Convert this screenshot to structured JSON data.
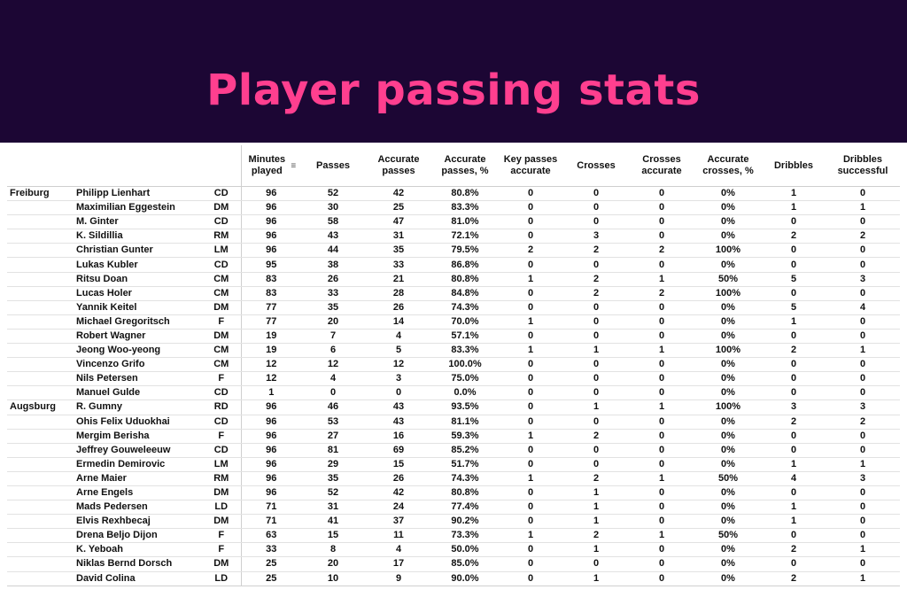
{
  "title": "Player passing stats",
  "colors": {
    "banner": "#1c0634",
    "title": "#ff3f8f"
  },
  "headers": {
    "minutes": "Minutes played",
    "passes": "Passes",
    "accurate_passes": "Accurate passes",
    "accurate_passes_pct": "Accurate passes, %",
    "key_passes": "Key passes accurate",
    "crosses": "Crosses",
    "crosses_accurate": "Crosses accurate",
    "accurate_crosses_pct": "Accurate crosses, %",
    "dribbles": "Dribbles",
    "dribbles_successful": "Dribbles successful",
    "sort_icon": "sort-icon"
  },
  "rows": [
    {
      "team": "Freiburg",
      "name": "Philipp Lienhart",
      "pos": "CD",
      "min": "96",
      "passes": "52",
      "acc": "42",
      "accp": "80.8%",
      "key": "0",
      "cr": "0",
      "cra": "0",
      "crp": "0%",
      "dr": "1",
      "drs": "0"
    },
    {
      "team": "",
      "name": "Maximilian Eggestein",
      "pos": "DM",
      "min": "96",
      "passes": "30",
      "acc": "25",
      "accp": "83.3%",
      "key": "0",
      "cr": "0",
      "cra": "0",
      "crp": "0%",
      "dr": "1",
      "drs": "1"
    },
    {
      "team": "",
      "name": "M. Ginter",
      "pos": "CD",
      "min": "96",
      "passes": "58",
      "acc": "47",
      "accp": "81.0%",
      "key": "0",
      "cr": "0",
      "cra": "0",
      "crp": "0%",
      "dr": "0",
      "drs": "0"
    },
    {
      "team": "",
      "name": "K. Sildillia",
      "pos": "RM",
      "min": "96",
      "passes": "43",
      "acc": "31",
      "accp": "72.1%",
      "key": "0",
      "cr": "3",
      "cra": "0",
      "crp": "0%",
      "dr": "2",
      "drs": "2"
    },
    {
      "team": "",
      "name": "Christian Gunter",
      "pos": "LM",
      "min": "96",
      "passes": "44",
      "acc": "35",
      "accp": "79.5%",
      "key": "2",
      "cr": "2",
      "cra": "2",
      "crp": "100%",
      "dr": "0",
      "drs": "0"
    },
    {
      "team": "",
      "name": "Lukas Kubler",
      "pos": "CD",
      "min": "95",
      "passes": "38",
      "acc": "33",
      "accp": "86.8%",
      "key": "0",
      "cr": "0",
      "cra": "0",
      "crp": "0%",
      "dr": "0",
      "drs": "0"
    },
    {
      "team": "",
      "name": "Ritsu Doan",
      "pos": "CM",
      "min": "83",
      "passes": "26",
      "acc": "21",
      "accp": "80.8%",
      "key": "1",
      "cr": "2",
      "cra": "1",
      "crp": "50%",
      "dr": "5",
      "drs": "3"
    },
    {
      "team": "",
      "name": "Lucas Holer",
      "pos": "CM",
      "min": "83",
      "passes": "33",
      "acc": "28",
      "accp": "84.8%",
      "key": "0",
      "cr": "2",
      "cra": "2",
      "crp": "100%",
      "dr": "0",
      "drs": "0"
    },
    {
      "team": "",
      "name": "Yannik Keitel",
      "pos": "DM",
      "min": "77",
      "passes": "35",
      "acc": "26",
      "accp": "74.3%",
      "key": "0",
      "cr": "0",
      "cra": "0",
      "crp": "0%",
      "dr": "5",
      "drs": "4"
    },
    {
      "team": "",
      "name": "Michael Gregoritsch",
      "pos": "F",
      "min": "77",
      "passes": "20",
      "acc": "14",
      "accp": "70.0%",
      "key": "1",
      "cr": "0",
      "cra": "0",
      "crp": "0%",
      "dr": "1",
      "drs": "0"
    },
    {
      "team": "",
      "name": "Robert Wagner",
      "pos": "DM",
      "min": "19",
      "passes": "7",
      "acc": "4",
      "accp": "57.1%",
      "key": "0",
      "cr": "0",
      "cra": "0",
      "crp": "0%",
      "dr": "0",
      "drs": "0"
    },
    {
      "team": "",
      "name": "Jeong Woo-yeong",
      "pos": "CM",
      "min": "19",
      "passes": "6",
      "acc": "5",
      "accp": "83.3%",
      "key": "1",
      "cr": "1",
      "cra": "1",
      "crp": "100%",
      "dr": "2",
      "drs": "1"
    },
    {
      "team": "",
      "name": "Vincenzo Grifo",
      "pos": "CM",
      "min": "12",
      "passes": "12",
      "acc": "12",
      "accp": "100.0%",
      "key": "0",
      "cr": "0",
      "cra": "0",
      "crp": "0%",
      "dr": "0",
      "drs": "0"
    },
    {
      "team": "",
      "name": "Nils Petersen",
      "pos": "F",
      "min": "12",
      "passes": "4",
      "acc": "3",
      "accp": "75.0%",
      "key": "0",
      "cr": "0",
      "cra": "0",
      "crp": "0%",
      "dr": "0",
      "drs": "0"
    },
    {
      "team": "",
      "name": "Manuel Gulde",
      "pos": "CD",
      "min": "1",
      "passes": "0",
      "acc": "0",
      "accp": "0.0%",
      "key": "0",
      "cr": "0",
      "cra": "0",
      "crp": "0%",
      "dr": "0",
      "drs": "0"
    },
    {
      "team": "Augsburg",
      "name": "R. Gumny",
      "pos": "RD",
      "min": "96",
      "passes": "46",
      "acc": "43",
      "accp": "93.5%",
      "key": "0",
      "cr": "1",
      "cra": "1",
      "crp": "100%",
      "dr": "3",
      "drs": "3"
    },
    {
      "team": "",
      "name": "Ohis Felix Uduokhai",
      "pos": "CD",
      "min": "96",
      "passes": "53",
      "acc": "43",
      "accp": "81.1%",
      "key": "0",
      "cr": "0",
      "cra": "0",
      "crp": "0%",
      "dr": "2",
      "drs": "2"
    },
    {
      "team": "",
      "name": "Mergim Berisha",
      "pos": "F",
      "min": "96",
      "passes": "27",
      "acc": "16",
      "accp": "59.3%",
      "key": "1",
      "cr": "2",
      "cra": "0",
      "crp": "0%",
      "dr": "0",
      "drs": "0"
    },
    {
      "team": "",
      "name": "Jeffrey Gouweleeuw",
      "pos": "CD",
      "min": "96",
      "passes": "81",
      "acc": "69",
      "accp": "85.2%",
      "key": "0",
      "cr": "0",
      "cra": "0",
      "crp": "0%",
      "dr": "0",
      "drs": "0"
    },
    {
      "team": "",
      "name": "Ermedin Demirovic",
      "pos": "LM",
      "min": "96",
      "passes": "29",
      "acc": "15",
      "accp": "51.7%",
      "key": "0",
      "cr": "0",
      "cra": "0",
      "crp": "0%",
      "dr": "1",
      "drs": "1"
    },
    {
      "team": "",
      "name": "Arne Maier",
      "pos": "RM",
      "min": "96",
      "passes": "35",
      "acc": "26",
      "accp": "74.3%",
      "key": "1",
      "cr": "2",
      "cra": "1",
      "crp": "50%",
      "dr": "4",
      "drs": "3"
    },
    {
      "team": "",
      "name": "Arne Engels",
      "pos": "DM",
      "min": "96",
      "passes": "52",
      "acc": "42",
      "accp": "80.8%",
      "key": "0",
      "cr": "1",
      "cra": "0",
      "crp": "0%",
      "dr": "0",
      "drs": "0"
    },
    {
      "team": "",
      "name": "Mads Pedersen",
      "pos": "LD",
      "min": "71",
      "passes": "31",
      "acc": "24",
      "accp": "77.4%",
      "key": "0",
      "cr": "1",
      "cra": "0",
      "crp": "0%",
      "dr": "1",
      "drs": "0"
    },
    {
      "team": "",
      "name": "Elvis Rexhbecaj",
      "pos": "DM",
      "min": "71",
      "passes": "41",
      "acc": "37",
      "accp": "90.2%",
      "key": "0",
      "cr": "1",
      "cra": "0",
      "crp": "0%",
      "dr": "1",
      "drs": "0"
    },
    {
      "team": "",
      "name": "Drena Beljo Dijon",
      "pos": "F",
      "min": "63",
      "passes": "15",
      "acc": "11",
      "accp": "73.3%",
      "key": "1",
      "cr": "2",
      "cra": "1",
      "crp": "50%",
      "dr": "0",
      "drs": "0"
    },
    {
      "team": "",
      "name": "K. Yeboah",
      "pos": "F",
      "min": "33",
      "passes": "8",
      "acc": "4",
      "accp": "50.0%",
      "key": "0",
      "cr": "1",
      "cra": "0",
      "crp": "0%",
      "dr": "2",
      "drs": "1"
    },
    {
      "team": "",
      "name": "Niklas Bernd Dorsch",
      "pos": "DM",
      "min": "25",
      "passes": "20",
      "acc": "17",
      "accp": "85.0%",
      "key": "0",
      "cr": "0",
      "cra": "0",
      "crp": "0%",
      "dr": "0",
      "drs": "0"
    },
    {
      "team": "",
      "name": "David Colina",
      "pos": "LD",
      "min": "25",
      "passes": "10",
      "acc": "9",
      "accp": "90.0%",
      "key": "0",
      "cr": "1",
      "cra": "0",
      "crp": "0%",
      "dr": "2",
      "drs": "1"
    }
  ]
}
